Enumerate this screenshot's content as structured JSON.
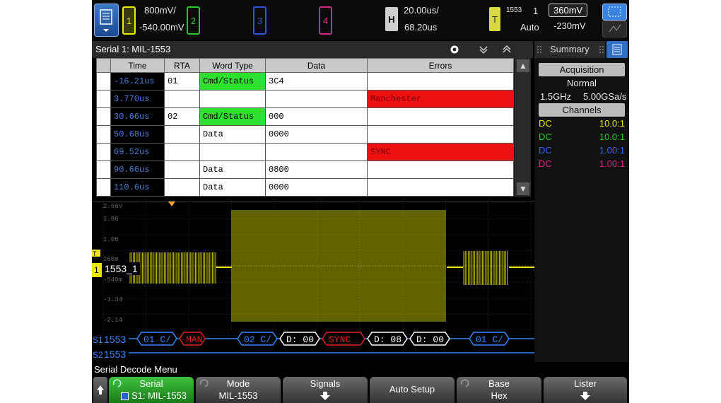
{
  "top": {
    "ch1": {
      "num": "1",
      "scale": "800mV/",
      "offset": "-540.00mV",
      "color": "#e8e800"
    },
    "ch2": {
      "num": "2",
      "color": "#22cc22"
    },
    "ch3": {
      "num": "3",
      "color": "#3355dd"
    },
    "ch4": {
      "num": "4",
      "color": "#dd2288"
    },
    "horiz": {
      "label": "H",
      "scale": "20.00us/",
      "delay": "68.20us"
    },
    "trigger": {
      "label": "T",
      "source": "1553",
      "chan": "1",
      "mode": "Auto",
      "level": "360mV",
      "level2": "-230mV"
    }
  },
  "lister": {
    "title": "Serial 1: MIL-1553",
    "columns": [
      "Time",
      "RTA",
      "Word Type",
      "Data",
      "Errors"
    ],
    "rows": [
      {
        "time": "-16.21us",
        "rta": "01",
        "type": "Cmd/Status",
        "data": "3C4",
        "error": ""
      },
      {
        "time": "3.770us",
        "rta": "",
        "type": "",
        "data": "",
        "error": "Manchester"
      },
      {
        "time": "30.66us",
        "rta": "02",
        "type": "Cmd/Status",
        "data": "000",
        "error": ""
      },
      {
        "time": "50.68us",
        "rta": "",
        "type": "Data",
        "data": "0000",
        "error": ""
      },
      {
        "time": "69.52us",
        "rta": "",
        "type": "",
        "data": "",
        "error": "SYNC"
      },
      {
        "time": "90.66us",
        "rta": "",
        "type": "Data",
        "data": "0800",
        "error": ""
      },
      {
        "time": "110.6us",
        "rta": "",
        "type": "Data",
        "data": "0000",
        "error": ""
      }
    ]
  },
  "waveform": {
    "scale_labels": [
      "2.66V",
      "1.86",
      "1.06",
      "260m",
      "-540m",
      "-1.34",
      "-2.14"
    ],
    "trace_label": "1553_1",
    "trig_marker": "T",
    "ch_marker": "1",
    "bus1": {
      "name": "S1",
      "label": "1553",
      "packets": [
        "01 C/",
        "MAN",
        "02 C/",
        "D: 00",
        "SYNC",
        "D: 08",
        "D: 00",
        "01 C/"
      ]
    },
    "bus2": {
      "name": "S2",
      "label": "1553"
    }
  },
  "summary": {
    "tab": "Summary",
    "acq_head": "Acquisition",
    "acq_mode": "Normal",
    "rate1": "1.5GHz",
    "rate2": "5.00GSa/s",
    "chan_head": "Channels",
    "channels": [
      {
        "coupling": "DC",
        "probe": "10.0:1",
        "color": "#e8e800"
      },
      {
        "coupling": "DC",
        "probe": "10.0:1",
        "color": "#22cc22"
      },
      {
        "coupling": "DC",
        "probe": "1.00:1",
        "color": "#3366ee"
      },
      {
        "coupling": "DC",
        "probe": "1.00:1",
        "color": "#dd2288"
      }
    ]
  },
  "menu": {
    "title": "Serial Decode Menu",
    "softkeys": [
      {
        "l1": "Serial",
        "l2": "S1: MIL-1553"
      },
      {
        "l1": "Mode",
        "l2": "MIL-1553"
      },
      {
        "l1": "Signals",
        "l2": ""
      },
      {
        "l1": "Auto Setup",
        "l2": ""
      },
      {
        "l1": "Base",
        "l2": "Hex"
      },
      {
        "l1": "Lister",
        "l2": ""
      }
    ]
  }
}
